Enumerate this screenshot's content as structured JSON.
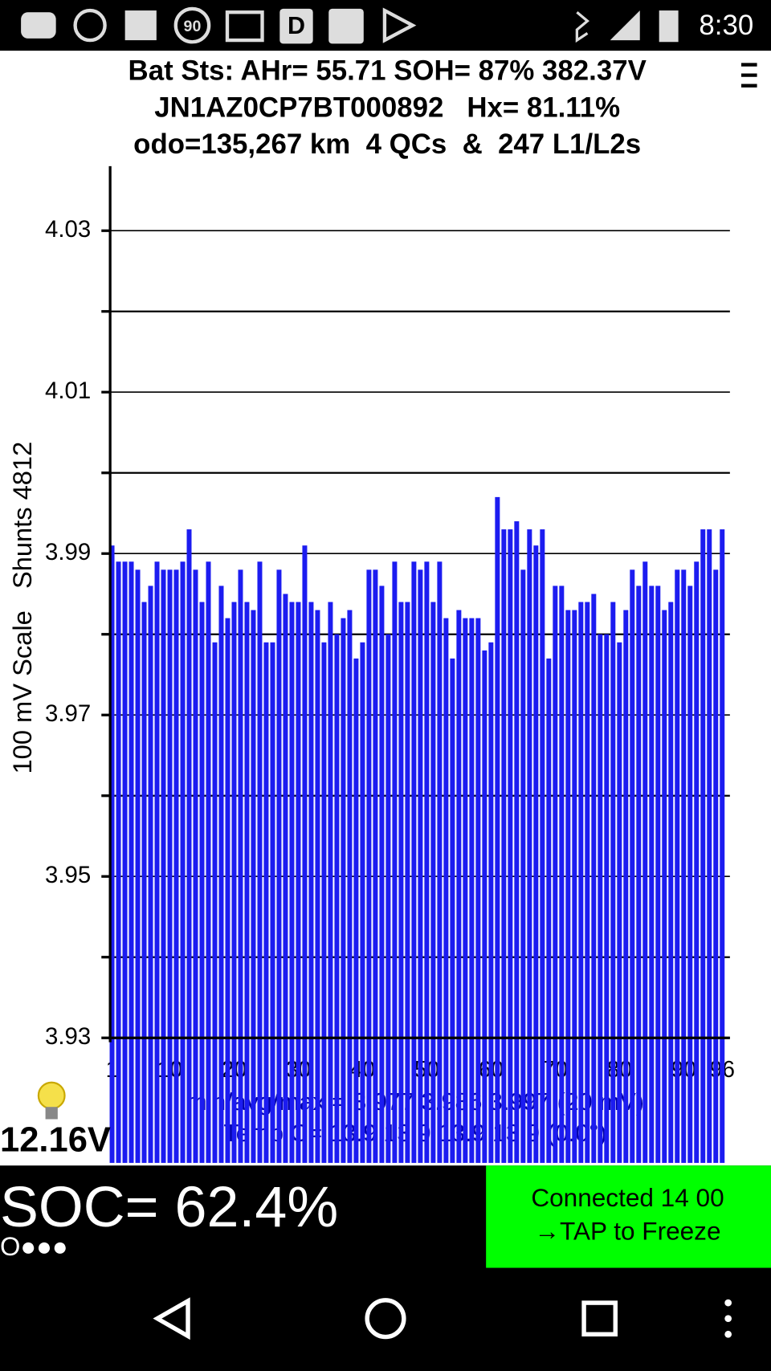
{
  "status_bar": {
    "badge": "90",
    "app_letter": "D",
    "time": "8:30"
  },
  "header": {
    "line1": "Bat Sts: AHr= 55.71 SOH= 87% 382.37V",
    "line2": "JN1AZ0CP7BT000892   Hx= 81.11%",
    "line3": "odo=135,267 km  4 QCs  &  247 L1/L2s"
  },
  "chart_data": {
    "type": "bar",
    "y_label": "100 mV Scale   Shunts 4812",
    "color": "#1c1cf0",
    "x": [
      1,
      2,
      3,
      4,
      5,
      6,
      7,
      8,
      9,
      10,
      11,
      12,
      13,
      14,
      15,
      16,
      17,
      18,
      19,
      20,
      21,
      22,
      23,
      24,
      25,
      26,
      27,
      28,
      29,
      30,
      31,
      32,
      33,
      34,
      35,
      36,
      37,
      38,
      39,
      40,
      41,
      42,
      43,
      44,
      45,
      46,
      47,
      48,
      49,
      50,
      51,
      52,
      53,
      54,
      55,
      56,
      57,
      58,
      59,
      60,
      61,
      62,
      63,
      64,
      65,
      66,
      67,
      68,
      69,
      70,
      71,
      72,
      73,
      74,
      75,
      76,
      77,
      78,
      79,
      80,
      81,
      82,
      83,
      84,
      85,
      86,
      87,
      88,
      89,
      90,
      91,
      92,
      93,
      94,
      95,
      96
    ],
    "values": [
      3.991,
      3.989,
      3.989,
      3.989,
      3.988,
      3.984,
      3.986,
      3.989,
      3.988,
      3.988,
      3.988,
      3.989,
      3.993,
      3.988,
      3.984,
      3.989,
      3.979,
      3.986,
      3.982,
      3.984,
      3.988,
      3.984,
      3.983,
      3.989,
      3.979,
      3.979,
      3.988,
      3.985,
      3.984,
      3.984,
      3.991,
      3.984,
      3.983,
      3.979,
      3.984,
      3.98,
      3.982,
      3.983,
      3.977,
      3.979,
      3.988,
      3.988,
      3.986,
      3.98,
      3.989,
      3.984,
      3.984,
      3.989,
      3.988,
      3.989,
      3.984,
      3.989,
      3.982,
      3.977,
      3.983,
      3.982,
      3.982,
      3.982,
      3.978,
      3.979,
      3.997,
      3.993,
      3.993,
      3.994,
      3.988,
      3.993,
      3.991,
      3.993,
      3.977,
      3.986,
      3.986,
      3.983,
      3.983,
      3.984,
      3.984,
      3.985,
      3.98,
      3.98,
      3.984,
      3.979,
      3.983,
      3.988,
      3.986,
      3.989,
      3.986,
      3.986,
      3.983,
      3.984,
      3.988,
      3.988,
      3.986,
      3.989,
      3.993,
      3.993,
      3.988,
      3.993
    ],
    "xlim": [
      0.7,
      97.2
    ],
    "xticks": [
      1,
      10,
      20,
      30,
      40,
      50,
      60,
      70,
      80,
      90,
      96
    ],
    "ylim": [
      3.93,
      4.038
    ],
    "yticks": [
      3.93,
      3.95,
      3.97,
      3.99,
      4.01,
      4.03
    ],
    "minor_yticks": [
      3.94,
      3.96,
      3.98,
      4.0,
      4.02
    ],
    "grid": true,
    "annotations": [
      "min/avg/max = 3.977 3.986 3.997 (20 mV)",
      "Temp C= 13.9 13.9 13.9 13.9 (0.0°)"
    ]
  },
  "footer": {
    "pack_voltage": "12.16V",
    "soc": "SOC= 62.4%",
    "dots": "O●●●",
    "status_line1": "Connected 14 00",
    "status_line2": "→TAP to Freeze"
  }
}
